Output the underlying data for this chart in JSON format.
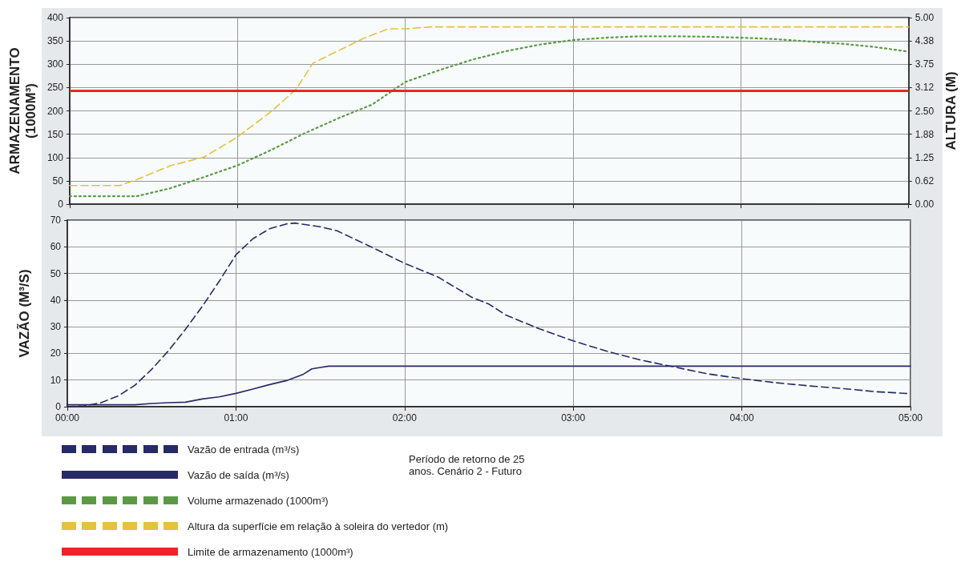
{
  "chart_data": [
    {
      "type": "line",
      "ylabel": "ARMAZENAMENTO (1000M³)",
      "y2label": "ALTURA (M)",
      "xlim": [
        0,
        5
      ],
      "xticks": [
        {
          "value": 0,
          "label": null
        },
        {
          "value": 1,
          "label": null
        },
        {
          "value": 2,
          "label": null
        },
        {
          "value": 3,
          "label": null
        },
        {
          "value": 4,
          "label": null
        },
        {
          "value": 5,
          "label": null
        }
      ],
      "ylim": [
        0,
        400
      ],
      "yticks": [
        0,
        50,
        100,
        150,
        200,
        250,
        300,
        350,
        400
      ],
      "y2lim": [
        0,
        5
      ],
      "y2ticks": [
        {
          "value": 0,
          "label": "0.00"
        },
        {
          "value": 0.625,
          "label": "0.62"
        },
        {
          "value": 1.25,
          "label": "1.25"
        },
        {
          "value": 1.875,
          "label": "1.88"
        },
        {
          "value": 2.5,
          "label": "2.50"
        },
        {
          "value": 3.125,
          "label": "3.12"
        },
        {
          "value": 3.75,
          "label": "3.75"
        },
        {
          "value": 4.375,
          "label": "4.38"
        },
        {
          "value": 5,
          "label": "5.00"
        }
      ],
      "tick_labels": "y",
      "grid": true,
      "legend": "bottom left",
      "marker": "none",
      "series": [
        {
          "name": "Volume armazenado (1000m³)",
          "color": "#5a9a45",
          "line_style": "dotted",
          "x": [
            0,
            0.4,
            0.6,
            0.8,
            1.0,
            1.2,
            1.4,
            1.6,
            1.8,
            2.0,
            2.2,
            2.4,
            2.6,
            2.8,
            3.0,
            3.2,
            3.4,
            3.6,
            3.8,
            4.0,
            4.2,
            4.4,
            4.6,
            4.8,
            5.0
          ],
          "values": [
            17,
            17,
            34,
            58,
            83,
            116,
            152,
            184,
            213,
            262,
            287,
            310,
            328,
            342,
            352,
            357,
            360,
            360,
            359,
            357,
            354,
            349,
            344,
            337,
            327
          ]
        },
        {
          "name": "Altura da superfície em relação à soleira do vertedor (m)",
          "color": "#e6c040",
          "line_style": "dashed",
          "axis": "y2",
          "x": [
            0,
            0.3,
            0.4,
            0.6,
            0.8,
            1.0,
            1.2,
            1.35,
            1.45,
            1.6,
            1.75,
            1.9,
            2.0,
            2.15,
            5.0
          ],
          "values": [
            0.5,
            0.5,
            0.66,
            1.03,
            1.26,
            1.8,
            2.48,
            3.08,
            3.78,
            4.11,
            4.44,
            4.7,
            4.7,
            4.75,
            4.75
          ]
        }
      ],
      "ref_lines": [
        {
          "axis": "y",
          "value": 243,
          "label": "Limite de armazenamento (1000m³)",
          "color": "#e8262a"
        }
      ]
    },
    {
      "type": "line",
      "ylabel": "VAZÃO (M³/S)",
      "xlim": [
        0,
        5
      ],
      "xticks": [
        {
          "value": 0,
          "label": "00:00"
        },
        {
          "value": 1,
          "label": "01:00"
        },
        {
          "value": 2,
          "label": "02:00"
        },
        {
          "value": 3,
          "label": "03:00"
        },
        {
          "value": 4,
          "label": "04:00"
        },
        {
          "value": 5,
          "label": "05:00"
        }
      ],
      "ylim": [
        0,
        70
      ],
      "yticks": [
        0,
        10,
        20,
        30,
        40,
        50,
        60,
        70
      ],
      "grid": true,
      "legend": "bottom left",
      "marker": "none",
      "annotations": [
        "Período de retorno de 25 anos. Cenário 2 - Futuro"
      ],
      "series": [
        {
          "name": "Vazão de entrada (m³/s)",
          "color": "#262a66",
          "line_style": "dashed",
          "x": [
            0,
            0.1,
            0.2,
            0.3,
            0.4,
            0.5,
            0.6,
            0.7,
            0.8,
            0.9,
            1.0,
            1.1,
            1.2,
            1.3,
            1.35,
            1.5,
            1.6,
            1.8,
            2.0,
            2.2,
            2.4,
            2.5,
            2.6,
            2.8,
            3.0,
            3.2,
            3.4,
            3.6,
            3.8,
            4.0,
            4.2,
            4.4,
            4.6,
            4.8,
            5.0
          ],
          "values": [
            0,
            0.3,
            1.5,
            4,
            8,
            14,
            21,
            29,
            37.6,
            47,
            57,
            63,
            66.8,
            68.6,
            68.9,
            67.5,
            66,
            60,
            53.8,
            48.6,
            41,
            38.5,
            34.4,
            29.2,
            24.7,
            20.8,
            17.5,
            14.9,
            12.3,
            10.5,
            9,
            7.8,
            6.8,
            5.6,
            4.9
          ]
        },
        {
          "name": "Vazão de saída (m³/s)",
          "color": "#262a66",
          "line_style": "solid",
          "x": [
            0,
            0.4,
            0.5,
            0.6,
            0.7,
            0.8,
            0.9,
            1.0,
            1.1,
            1.2,
            1.3,
            1.4,
            1.45,
            1.5,
            1.55,
            5.0
          ],
          "values": [
            0.7,
            0.7,
            1.2,
            1.5,
            1.7,
            2.9,
            3.7,
            5,
            6.6,
            8.3,
            9.8,
            12.2,
            14.2,
            14.7,
            15.2,
            15.2
          ]
        }
      ]
    }
  ]
}
